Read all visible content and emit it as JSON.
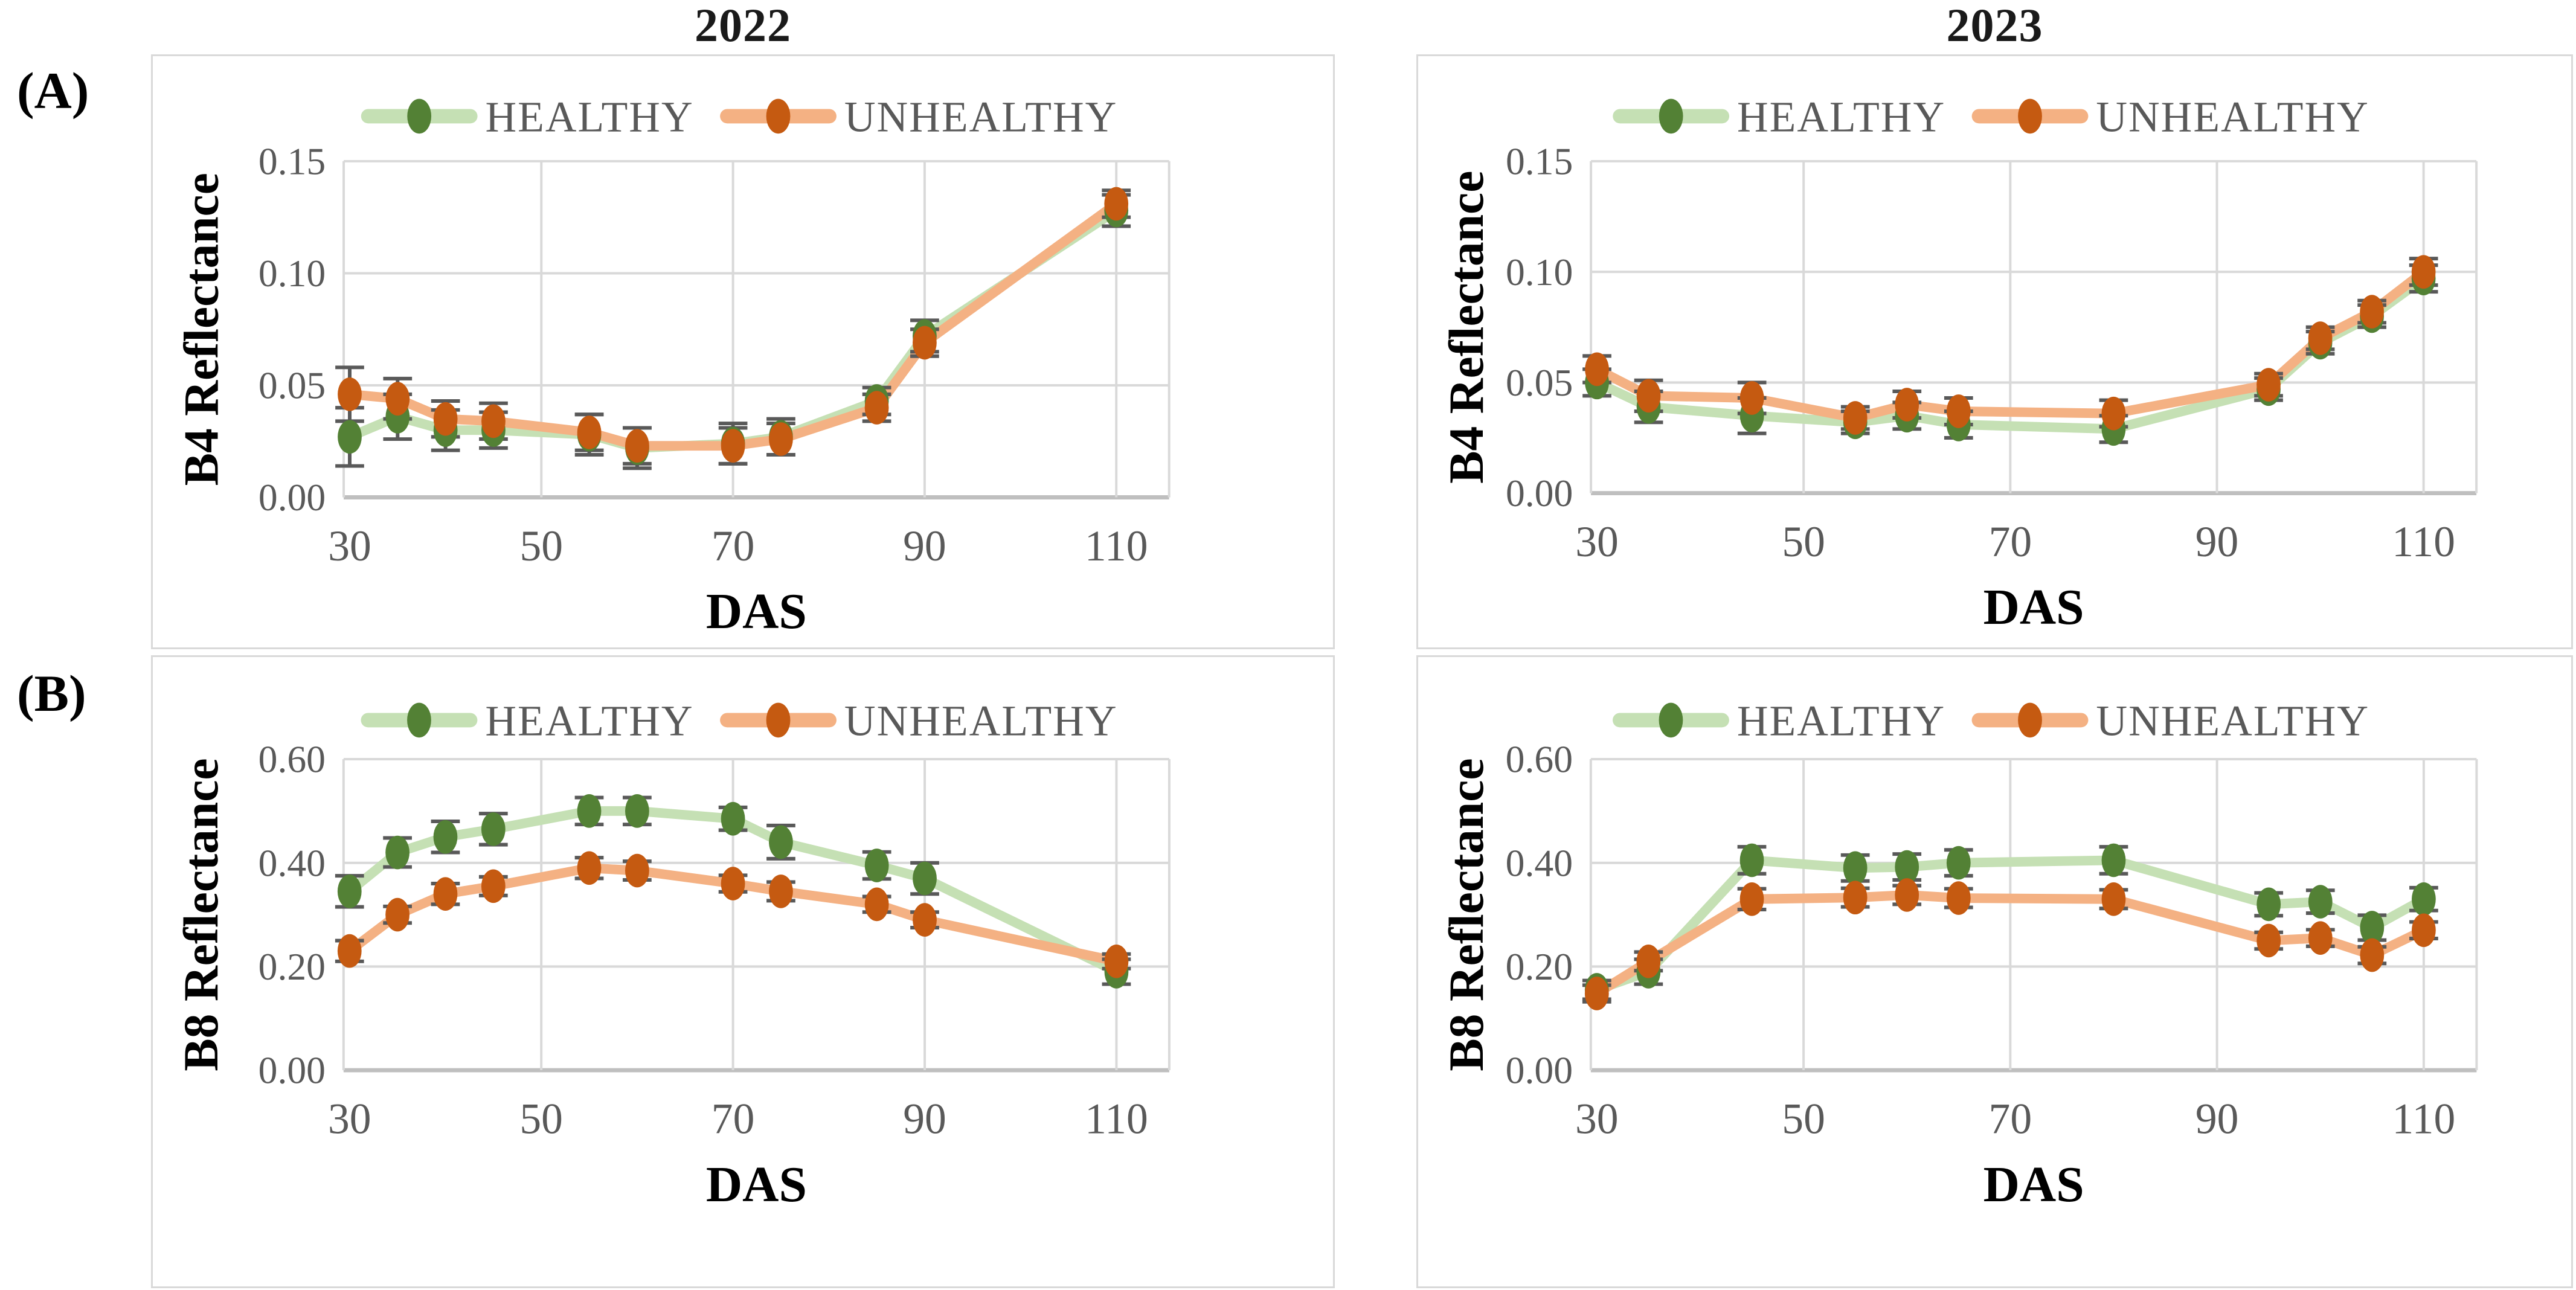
{
  "figure": {
    "column_titles": [
      "2022",
      "2023"
    ],
    "row_labels": [
      "(A)",
      "(B)"
    ],
    "legend": {
      "healthy_label": "HEALTHY",
      "unhealthy_label": "UNHEALTHY"
    }
  },
  "colors": {
    "healthy_line": "#c5e0b4",
    "healthy_marker": "#538135",
    "unhealthy_line": "#f4b183",
    "unhealthy_marker": "#c55a11",
    "error_bar": "#595959",
    "grid": "#d9d9d9",
    "axis_line": "#bfbfbf",
    "tick_text": "#595959",
    "title_text": "#000000",
    "panel_border": "#d9d9d9"
  },
  "chart_data": [
    {
      "id": "A-2022",
      "panel": "A",
      "type": "line",
      "title": "2022",
      "xlabel": "DAS",
      "ylabel": "B4 Reflectance",
      "xlim": [
        30,
        110
      ],
      "xticks": [
        30,
        50,
        70,
        90,
        110
      ],
      "ylim": [
        0,
        0.15
      ],
      "yticks": [
        0.0,
        0.05,
        0.1,
        0.15
      ],
      "ytick_decimals": 2,
      "grid": true,
      "legend_position": "top-center",
      "x": [
        30,
        35,
        40,
        45,
        55,
        60,
        70,
        75,
        85,
        90,
        110
      ],
      "series": [
        {
          "name": "HEALTHY",
          "values": [
            0.027,
            0.036,
            0.03,
            0.03,
            0.028,
            0.022,
            0.024,
            0.027,
            0.043,
            0.072,
            0.128
          ],
          "errors": [
            0.013,
            0.01,
            0.009,
            0.008,
            0.009,
            0.009,
            0.009,
            0.008,
            0.006,
            0.007,
            0.007
          ]
        },
        {
          "name": "UNHEALTHY",
          "values": [
            0.046,
            0.044,
            0.035,
            0.034,
            0.029,
            0.023,
            0.023,
            0.026,
            0.04,
            0.069,
            0.131
          ],
          "errors": [
            0.012,
            0.009,
            0.008,
            0.008,
            0.008,
            0.008,
            0.008,
            0.007,
            0.006,
            0.006,
            0.006
          ]
        }
      ]
    },
    {
      "id": "A-2023",
      "panel": "A",
      "type": "line",
      "title": "2023",
      "xlabel": "DAS",
      "ylabel": "B4 Reflectance",
      "xlim": [
        30,
        110
      ],
      "xticks": [
        30,
        50,
        70,
        90,
        110
      ],
      "ylim": [
        0,
        0.15
      ],
      "yticks": [
        0.0,
        0.05,
        0.1,
        0.15
      ],
      "ytick_decimals": 2,
      "grid": true,
      "legend_position": "top-center",
      "x": [
        30,
        35,
        45,
        55,
        60,
        65,
        80,
        95,
        100,
        105,
        110
      ],
      "series": [
        {
          "name": "HEALTHY",
          "values": [
            0.05,
            0.039,
            0.035,
            0.032,
            0.035,
            0.031,
            0.029,
            0.047,
            0.068,
            0.08,
            0.097
          ],
          "errors": [
            0.006,
            0.007,
            0.008,
            0.005,
            0.006,
            0.006,
            0.006,
            0.005,
            0.005,
            0.005,
            0.006
          ]
        },
        {
          "name": "UNHEALTHY",
          "values": [
            0.056,
            0.044,
            0.043,
            0.034,
            0.04,
            0.037,
            0.036,
            0.049,
            0.07,
            0.082,
            0.1
          ],
          "errors": [
            0.006,
            0.007,
            0.007,
            0.005,
            0.006,
            0.006,
            0.006,
            0.005,
            0.005,
            0.005,
            0.006
          ]
        }
      ]
    },
    {
      "id": "B-2022",
      "panel": "B",
      "type": "line",
      "title": "2022",
      "xlabel": "DAS",
      "ylabel": "B8 Reflectance",
      "xlim": [
        30,
        110
      ],
      "xticks": [
        30,
        50,
        70,
        90,
        110
      ],
      "ylim": [
        0,
        0.6
      ],
      "yticks": [
        0.0,
        0.2,
        0.4,
        0.6
      ],
      "ytick_decimals": 2,
      "grid": true,
      "legend_position": "top-center",
      "x": [
        30,
        35,
        40,
        45,
        55,
        60,
        70,
        75,
        85,
        90,
        110
      ],
      "series": [
        {
          "name": "HEALTHY",
          "values": [
            0.345,
            0.42,
            0.45,
            0.465,
            0.5,
            0.5,
            0.485,
            0.44,
            0.395,
            0.37,
            0.19
          ],
          "errors": [
            0.03,
            0.028,
            0.03,
            0.03,
            0.026,
            0.026,
            0.022,
            0.032,
            0.026,
            0.03,
            0.024
          ]
        },
        {
          "name": "UNHEALTHY",
          "values": [
            0.23,
            0.3,
            0.34,
            0.355,
            0.39,
            0.385,
            0.36,
            0.345,
            0.32,
            0.29,
            0.21
          ],
          "errors": [
            0.02,
            0.016,
            0.02,
            0.018,
            0.02,
            0.018,
            0.016,
            0.018,
            0.015,
            0.015,
            0.014
          ]
        }
      ]
    },
    {
      "id": "B-2023",
      "panel": "B",
      "type": "line",
      "title": "2023",
      "xlabel": "DAS",
      "ylabel": "B8 Reflectance",
      "xlim": [
        30,
        110
      ],
      "xticks": [
        30,
        50,
        70,
        90,
        110
      ],
      "ylim": [
        0,
        0.6
      ],
      "yticks": [
        0.0,
        0.2,
        0.4,
        0.6
      ],
      "ytick_decimals": 2,
      "grid": true,
      "legend_position": "top-center",
      "x": [
        30,
        35,
        45,
        55,
        60,
        65,
        80,
        95,
        100,
        105,
        110
      ],
      "series": [
        {
          "name": "HEALTHY",
          "values": [
            0.155,
            0.19,
            0.405,
            0.39,
            0.392,
            0.4,
            0.405,
            0.32,
            0.325,
            0.275,
            0.33
          ],
          "errors": [
            0.018,
            0.024,
            0.026,
            0.025,
            0.025,
            0.025,
            0.026,
            0.022,
            0.022,
            0.024,
            0.022
          ]
        },
        {
          "name": "UNHEALTHY",
          "values": [
            0.148,
            0.21,
            0.33,
            0.333,
            0.338,
            0.332,
            0.33,
            0.25,
            0.255,
            0.222,
            0.27
          ],
          "errors": [
            0.016,
            0.018,
            0.02,
            0.018,
            0.018,
            0.018,
            0.018,
            0.016,
            0.016,
            0.016,
            0.016
          ]
        }
      ]
    }
  ]
}
